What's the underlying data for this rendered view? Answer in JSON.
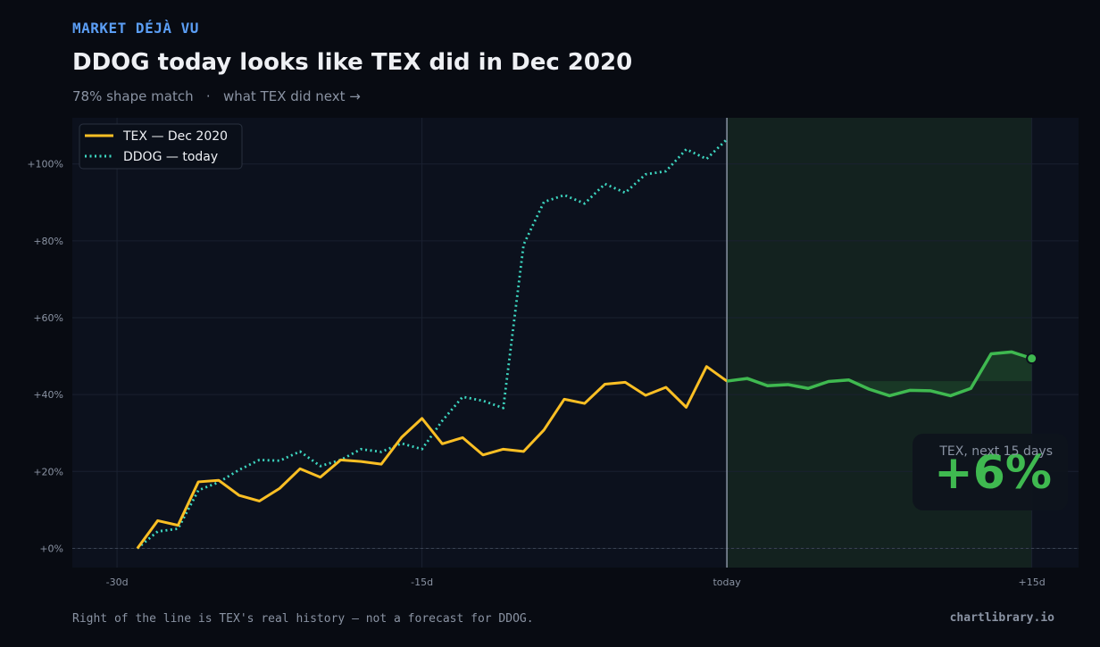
{
  "header": {
    "kicker": "MARKET DÉJÀ VU",
    "title": "DDOG today looks like TEX did in Dec 2020",
    "subtitle": "78% shape match   ·   what TEX did next →"
  },
  "footer": {
    "note": "Right of the line is TEX's real history — not a forecast for DDOG.",
    "brand": "chartlibrary.io"
  },
  "colors": {
    "background": "#080b12",
    "plot_bg": "#0c111d",
    "kicker": "#5b9ef5",
    "tex": "#fbbf24",
    "ddog": "#3dd6c0",
    "future": "#3fb950",
    "future_region": "#13221f",
    "today_line": "#8a93a3"
  },
  "chart_data": {
    "type": "line",
    "xlim": [
      -32.2,
      17.3
    ],
    "ylim": [
      -5,
      112
    ],
    "x_ticks": [
      {
        "value": -30,
        "label": "-30d"
      },
      {
        "value": -15,
        "label": "-15d"
      },
      {
        "value": 0,
        "label": "today"
      },
      {
        "value": 15,
        "label": "+15d"
      }
    ],
    "y_ticks": [
      {
        "value": 0,
        "label": "+0%"
      },
      {
        "value": 20,
        "label": "+20%"
      },
      {
        "value": 40,
        "label": "+40%"
      },
      {
        "value": 60,
        "label": "+60%"
      },
      {
        "value": 80,
        "label": "+80%"
      },
      {
        "value": 100,
        "label": "+100%"
      }
    ],
    "grid": true,
    "legend_position": "top-left",
    "series": [
      {
        "name": "TEX — Dec 2020",
        "style": "solid",
        "x_start": -29,
        "values": [
          0,
          7.2,
          6.0,
          17.3,
          17.7,
          13.8,
          12.3,
          15.6,
          20.7,
          18.5,
          23.0,
          22.6,
          21.9,
          28.9,
          33.8,
          27.2,
          28.8,
          24.3,
          25.8,
          25.2,
          30.8,
          38.8,
          37.7,
          42.7,
          43.2,
          39.8,
          41.9,
          36.7,
          47.3,
          43.5
        ]
      },
      {
        "name": "DDOG — today",
        "style": "dotted",
        "x_start": -29,
        "values": [
          0,
          4.4,
          5.1,
          15.1,
          17.2,
          20.4,
          23.0,
          22.8,
          25.2,
          21.4,
          23.0,
          25.8,
          25.1,
          27.3,
          25.8,
          33.2,
          39.4,
          38.4,
          36.5,
          79.0,
          90.1,
          91.9,
          89.7,
          94.8,
          92.5,
          97.3,
          98.1,
          103.8,
          101.3,
          106.4
        ]
      },
      {
        "name": "",
        "style": "future",
        "x_start": 0,
        "values": [
          43.5,
          44.2,
          42.3,
          42.6,
          41.6,
          43.4,
          43.8,
          41.4,
          39.7,
          41.1,
          41.0,
          39.7,
          41.6,
          50.6,
          51.1,
          49.4
        ]
      }
    ],
    "annotation": {
      "label": "TEX, next 15 days",
      "value": "+6%"
    }
  }
}
